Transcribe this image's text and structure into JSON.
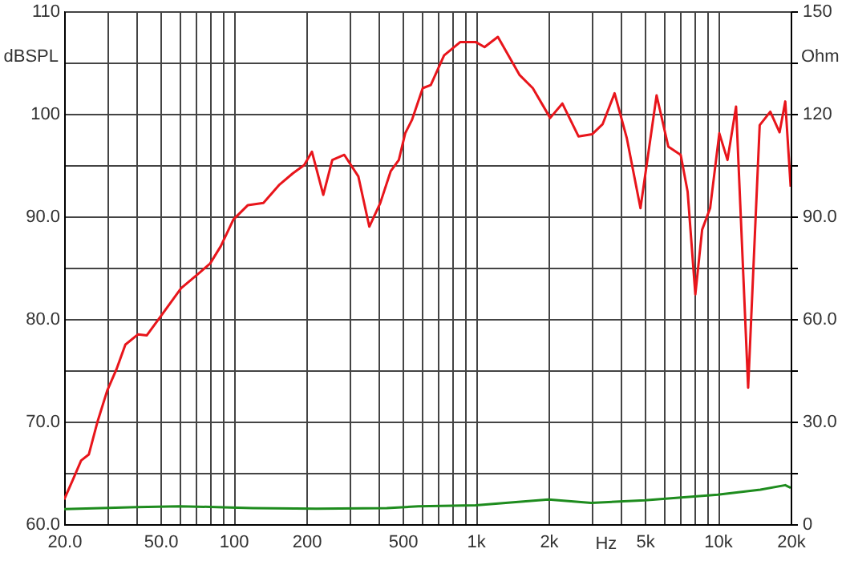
{
  "chart_data": {
    "type": "line",
    "xlabel": "Hz",
    "ylabel": "dBSPL",
    "y2label": "Ohm",
    "log": "x",
    "grid": true,
    "line_style": "solid",
    "xlim": [
      20,
      20000
    ],
    "xticks": [
      {
        "value": 20,
        "label": "20.0"
      },
      {
        "value": 30,
        "label": null
      },
      {
        "value": 40,
        "label": null
      },
      {
        "value": 50,
        "label": "50.0"
      },
      {
        "value": 60,
        "label": null
      },
      {
        "value": 70,
        "label": null
      },
      {
        "value": 80,
        "label": null
      },
      {
        "value": 90,
        "label": null
      },
      100,
      200,
      {
        "value": 300,
        "label": null
      },
      {
        "value": 400,
        "label": null
      },
      500,
      {
        "value": 600,
        "label": null
      },
      {
        "value": 700,
        "label": null
      },
      {
        "value": 800,
        "label": null
      },
      {
        "value": 900,
        "label": null
      },
      {
        "value": 1000,
        "label": "1k"
      },
      {
        "value": 2000,
        "label": "2k"
      },
      {
        "value": 3000,
        "label": null
      },
      {
        "value": 4000,
        "label": null
      },
      {
        "value": 5000,
        "label": "5k"
      },
      {
        "value": 6000,
        "label": null
      },
      {
        "value": 7000,
        "label": null
      },
      {
        "value": 8000,
        "label": null
      },
      {
        "value": 9000,
        "label": null
      },
      {
        "value": 10000,
        "label": "10k"
      },
      {
        "value": 20000,
        "label": "20k"
      }
    ],
    "ylim": [
      60,
      110
    ],
    "yticks": [
      {
        "value": 60,
        "label": "60.0"
      },
      {
        "value": 65,
        "label": null
      },
      {
        "value": 70,
        "label": "70.0"
      },
      {
        "value": 75,
        "label": null
      },
      {
        "value": 80,
        "label": "80.0"
      },
      {
        "value": 85,
        "label": null
      },
      {
        "value": 90,
        "label": "90.0"
      },
      {
        "value": 95,
        "label": null
      },
      100,
      {
        "value": 105,
        "label": null
      },
      110
    ],
    "y2lim": [
      0,
      150
    ],
    "y2ticks": [
      0,
      {
        "value": 15,
        "label": null
      },
      {
        "value": 30,
        "label": "30.0"
      },
      {
        "value": 45,
        "label": null
      },
      {
        "value": 60,
        "label": "60.0"
      },
      {
        "value": 75,
        "label": null
      },
      {
        "value": 90,
        "label": "90.0"
      },
      {
        "value": 105,
        "label": null
      },
      120,
      {
        "value": 135,
        "label": null
      },
      150
    ],
    "series": [
      {
        "color": "#e8151b",
        "x": [
          20,
          21.8,
          23.5,
          25.3,
          27.4,
          30.1,
          32.9,
          35.8,
          40.4,
          43.9,
          50.6,
          60.8,
          72.4,
          80.1,
          88.7,
          100,
          114.8,
          133,
          155,
          176,
          196,
          211,
          235,
          256,
          287,
          328,
          364,
          404,
          446,
          482,
          512,
          546,
          605,
          653,
          741,
          865,
          1000,
          1089,
          1236,
          1517,
          1723,
          2032,
          2282,
          2660,
          3026,
          3348,
          3750,
          4214,
          4796,
          5590,
          6250,
          7030,
          7510,
          8080,
          8620,
          9300,
          10150,
          10970,
          11900,
          13350,
          14900,
          16480,
          18000,
          19000,
          20000
        ],
        "values": [
          62.4,
          64.4,
          66.2,
          66.8,
          69.9,
          73.0,
          75.1,
          77.5,
          78.5,
          78.4,
          80.4,
          83.0,
          84.5,
          85.4,
          87.1,
          89.7,
          91.1,
          91.3,
          93.1,
          94.2,
          95.0,
          96.3,
          92.1,
          95.5,
          96.0,
          93.9,
          89.0,
          91.3,
          94.4,
          95.5,
          98.1,
          99.4,
          102.5,
          102.8,
          105.7,
          107.0,
          107.0,
          106.5,
          107.5,
          103.8,
          102.5,
          99.6,
          101.0,
          97.8,
          98.0,
          99.0,
          102.0,
          97.6,
          90.8,
          101.8,
          96.8,
          96.0,
          92.4,
          82.4,
          88.7,
          90.8,
          98.1,
          95.5,
          100.7,
          73.3,
          98.9,
          100.2,
          98.2,
          101.2,
          92.9
        ]
      },
      {
        "color": "#1e8c1e",
        "axis": "y2",
        "x": [
          20,
          40,
          60,
          85,
          120,
          220,
          430,
          580,
          1000,
          2000,
          3000,
          5000,
          10000,
          15000,
          19000,
          20000
        ],
        "values": [
          4.4,
          5.0,
          5.2,
          5.0,
          4.7,
          4.5,
          4.7,
          5.2,
          5.5,
          7.2,
          6.2,
          7.0,
          8.6,
          10.1,
          11.4,
          10.6
        ]
      }
    ]
  }
}
